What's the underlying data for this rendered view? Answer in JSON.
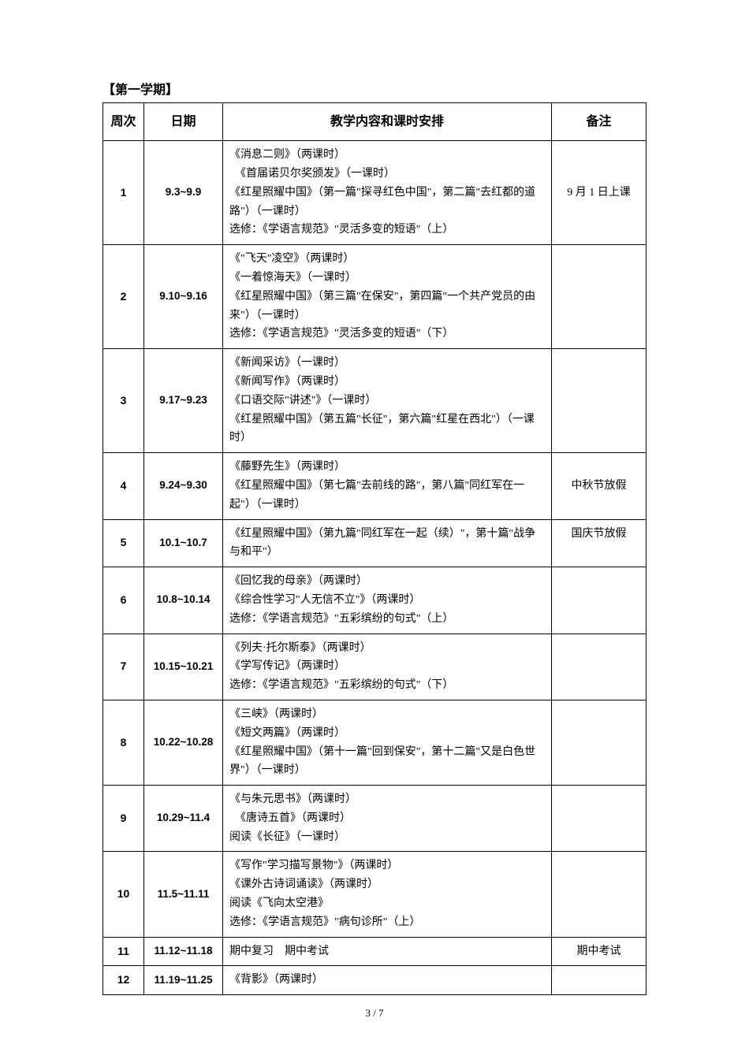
{
  "section_title": "【第一学期】",
  "columns": [
    "周次",
    "日期",
    "教学内容和课时安排",
    "备注"
  ],
  "rows": [
    {
      "week": "1",
      "date": "9.3~9.9",
      "content": "《消息二则》（两课时）\n　《首届诺贝尔奖颁发》（一课时）\n《红星照耀中国》（第一篇\"探寻红色中国\"，第二篇\"去红都的道路\"）（一课时）\n选修：《学语言规范》\"灵活多变的短语\"（上）",
      "note": "9 月 1 日上课",
      "note_align": "middle"
    },
    {
      "week": "2",
      "date": "9.10~9.16",
      "content": "《\"飞天\"凌空》（两课时）\n《一着惊海天》（一课时）\n《红星照耀中国》（第三篇\"在保安\"，第四篇\"一个共产党员的由来\"）（一课时）\n选修：《学语言规范》\"灵活多变的短语\"（下）",
      "note": "",
      "note_align": "middle"
    },
    {
      "week": "3",
      "date": "9.17~9.23",
      "content": "《新闻采访》（一课时）\n《新闻写作》（两课时）\n《口语交际\"讲述\"》（一课时）\n《红星照耀中国》（第五篇\"长征\"，第六篇\"红星在西北\"）（一课时）",
      "note": "",
      "note_align": "middle"
    },
    {
      "week": "4",
      "date": "9.24~9.30",
      "content": "《藤野先生》（两课时）\n《红星照耀中国》（第七篇\"去前线的路\"，第八篇\"同红军在一起\"）（一课时）",
      "note": "中秋节放假",
      "note_align": "middle"
    },
    {
      "week": "5",
      "date": "10.1~10.7",
      "content": "《红星照耀中国》（第九篇\"同红军在一起（续）\"，第十篇\"战争与和平\"）",
      "note": "国庆节放假",
      "note_align": "top"
    },
    {
      "week": "6",
      "date": "10.8~10.14",
      "content": "《回忆我的母亲》（两课时）\n《综合性学习\"人无信不立\"》（两课时）\n选修：《学语言规范》\"五彩缤纷的句式\"（上）",
      "note": "",
      "note_align": "middle"
    },
    {
      "week": "7",
      "date": "10.15~10.21",
      "content": "《列夫·托尔斯泰》（两课时）\n《学写传记》（两课时）\n选修：《学语言规范》\"五彩缤纷的句式\"（下）",
      "note": "",
      "note_align": "middle"
    },
    {
      "week": "8",
      "date": "10.22~10.28",
      "content": "《三峡》（两课时）\n《短文两篇》（两课时）\n《红星照耀中国》（第十一篇\"回到保安\"，第十二篇\"又是白色世界\"）（一课时）",
      "note": "",
      "note_align": "middle"
    },
    {
      "week": "9",
      "date": "10.29~11.4",
      "content": "《与朱元思书》（两课时）\n　《唐诗五首》（两课时）\n阅读《长征》（一课时）",
      "note": "",
      "note_align": "middle"
    },
    {
      "week": "10",
      "date": "11.5~11.11",
      "content": "《写作\"学习描写景物\"》（两课时）\n《课外古诗词诵读》（两课时）\n阅读《飞向太空港》\n选修：《学语言规范》\"病句诊所\"（上）",
      "note": "",
      "note_align": "middle"
    },
    {
      "week": "11",
      "date": "11.12~11.18",
      "content": "期中复习　期中考试",
      "note": "期中考试",
      "note_align": "middle"
    },
    {
      "week": "12",
      "date": "11.19~11.25",
      "content": "《背影》（两课时）",
      "note": "",
      "note_align": "middle"
    }
  ],
  "page_number": "3 / 7"
}
